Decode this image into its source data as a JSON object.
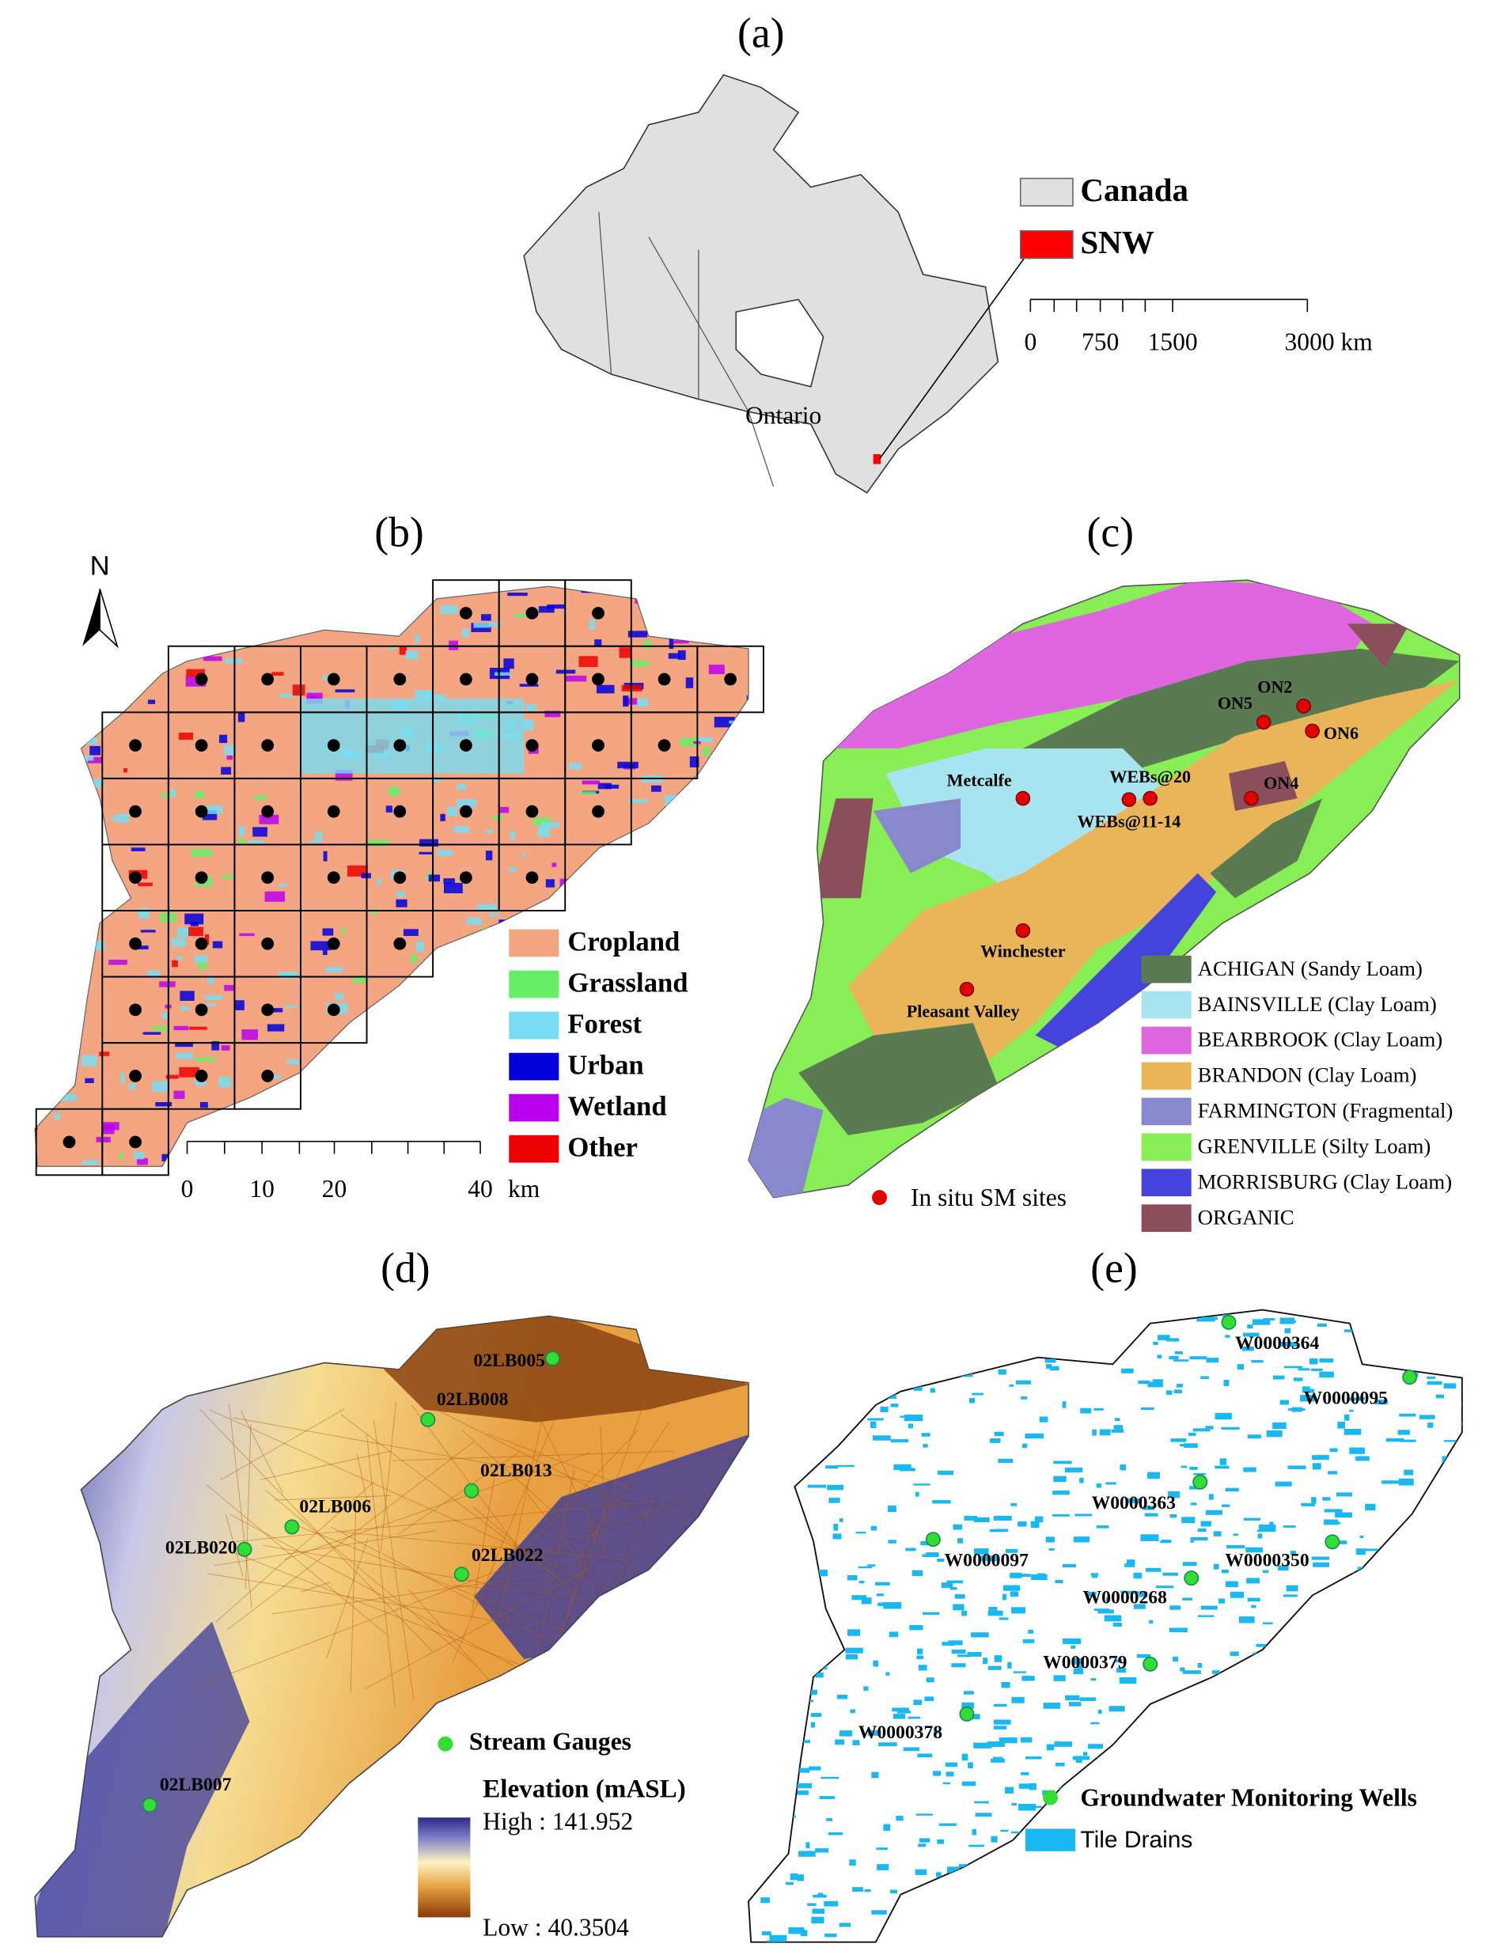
{
  "a": {
    "label": "(a)",
    "region_label": "Ontario",
    "legend": [
      {
        "name": "Canada",
        "color": "#e0e0e0"
      },
      {
        "name": "SNW",
        "color": "#ff0000"
      }
    ],
    "scale": [
      "0",
      "750",
      "1500",
      "3000 km"
    ]
  },
  "b": {
    "label": "(b)",
    "north": "N",
    "legend": [
      {
        "name": "Cropland",
        "color": "#f4a582"
      },
      {
        "name": "Grassland",
        "color": "#66ee66"
      },
      {
        "name": "Forest",
        "color": "#77ddf2"
      },
      {
        "name": "Urban",
        "color": "#0000dd"
      },
      {
        "name": "Wetland",
        "color": "#bb00ee"
      },
      {
        "name": "Other",
        "color": "#ee0000"
      }
    ],
    "scale": [
      "0",
      "10",
      "20",
      "40",
      "km"
    ]
  },
  "c": {
    "label": "(c)",
    "sites": [
      "Metcalfe",
      "WEBs@20",
      "WEBs@11-14",
      "ON5",
      "ON2",
      "ON6",
      "ON4",
      "Winchester",
      "Pleasant Valley"
    ],
    "sites_legend": "In situ SM sites",
    "legend": [
      {
        "name": "ACHIGAN (Sandy Loam)",
        "color": "#5a7a52"
      },
      {
        "name": "BAINSVILLE (Clay Loam)",
        "color": "#a8e4ef"
      },
      {
        "name": "BEARBROOK (Clay Loam)",
        "color": "#e066e0"
      },
      {
        "name": "BRANDON (Clay Loam)",
        "color": "#eab558"
      },
      {
        "name": "FARMINGTON (Fragmental)",
        "color": "#8888cc"
      },
      {
        "name": "GRENVILLE (Silty Loam)",
        "color": "#88ee55"
      },
      {
        "name": "MORRISBURG (Clay Loam)",
        "color": "#4444dd"
      },
      {
        "name": "ORGANIC",
        "color": "#8b4f5c"
      }
    ]
  },
  "d": {
    "label": "(d)",
    "gauges": [
      "02LB005",
      "02LB008",
      "02LB013",
      "02LB006",
      "02LB020",
      "02LB022",
      "02LB007"
    ],
    "gauges_legend": "Stream Gauges",
    "elevation_title": "Elevation (mASL)",
    "high": "High : 141.952",
    "low": "Low : 40.3504"
  },
  "e": {
    "label": "(e)",
    "wells": [
      "W0000364",
      "W0000095",
      "W0000363",
      "W0000097",
      "W0000350",
      "W0000268",
      "W0000379",
      "W0000378"
    ],
    "wells_legend": "Groundwater Monitoring Wells",
    "drains_legend": "Tile Drains"
  }
}
